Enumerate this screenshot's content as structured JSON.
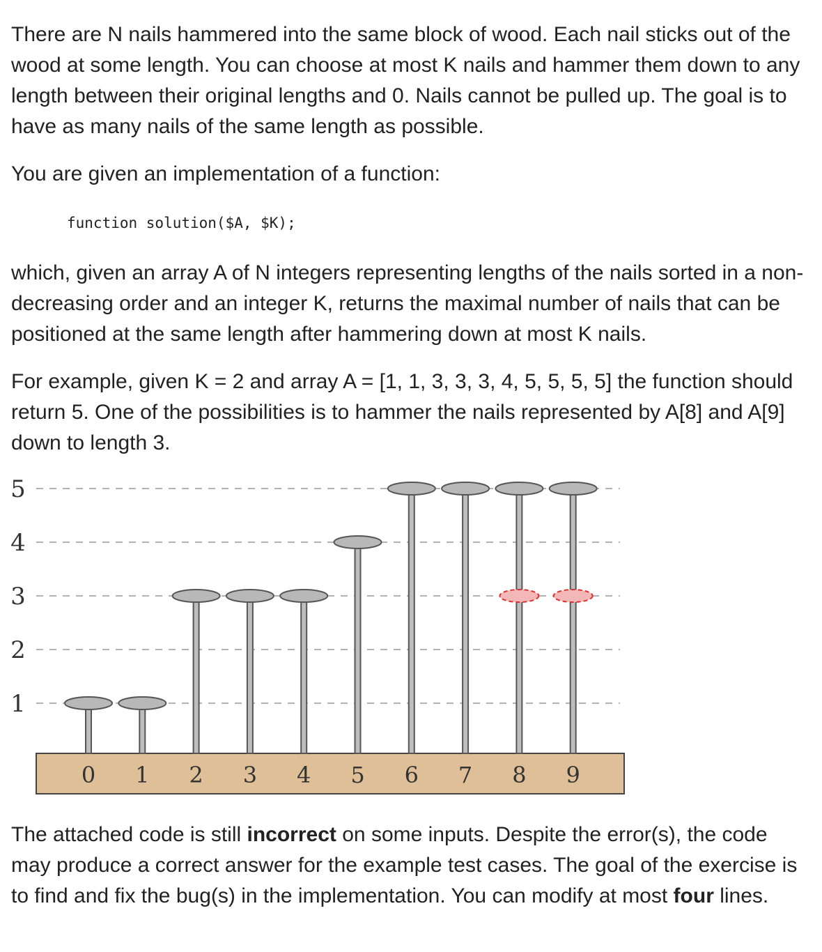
{
  "document": {
    "intro_text": "There are N nails hammered into the same block of wood. Each nail sticks out of the wood at some length. You can choose at most K nails and hammer them down to any length between their original lengths and 0. Nails cannot be pulled up. The goal is to have as many nails of the same length as possible.",
    "function_intro": "You are given an implementation of a function:",
    "code_signature": "function solution($A, $K);",
    "description_text": "which, given an array A of N integers representing lengths of the nails sorted in a non-decreasing order and an integer K, returns the maximal number of nails that can be positioned at the same length after hammering down at most K nails.",
    "example_text": "For example, given K = 2 and array A = [1, 1, 3, 3, 3, 4, 5, 5, 5, 5] the function should return 5. One of the possibilities is to hammer the nails represented by A[8] and A[9] down to length 3.",
    "closing_part1": "The attached code is still ",
    "closing_bold1": "incorrect",
    "closing_part2": " on some inputs. Despite the error(s), the code may produce a correct answer for the example test cases. The goal of the exercise is to find and fix the bug(s) in the implementation. You can modify at most ",
    "closing_bold2": "four",
    "closing_part3": " lines."
  },
  "chart_data": {
    "type": "diagram",
    "y_ticks": [
      "5",
      "4",
      "3",
      "2",
      "1"
    ],
    "nail_indices": [
      "0",
      "1",
      "2",
      "3",
      "4",
      "5",
      "6",
      "7",
      "8",
      "9"
    ],
    "nail_lengths": [
      1,
      1,
      3,
      3,
      3,
      4,
      5,
      5,
      5,
      5
    ],
    "hammered_nails": [
      {
        "index": 8,
        "to_length": 3
      },
      {
        "index": 9,
        "to_length": 3
      }
    ],
    "colors": {
      "wood": "#dfbf98",
      "nail_head": "#b8b8b8",
      "hammered_head": "#f4b7b7",
      "hammered_outline": "#e03030"
    }
  }
}
